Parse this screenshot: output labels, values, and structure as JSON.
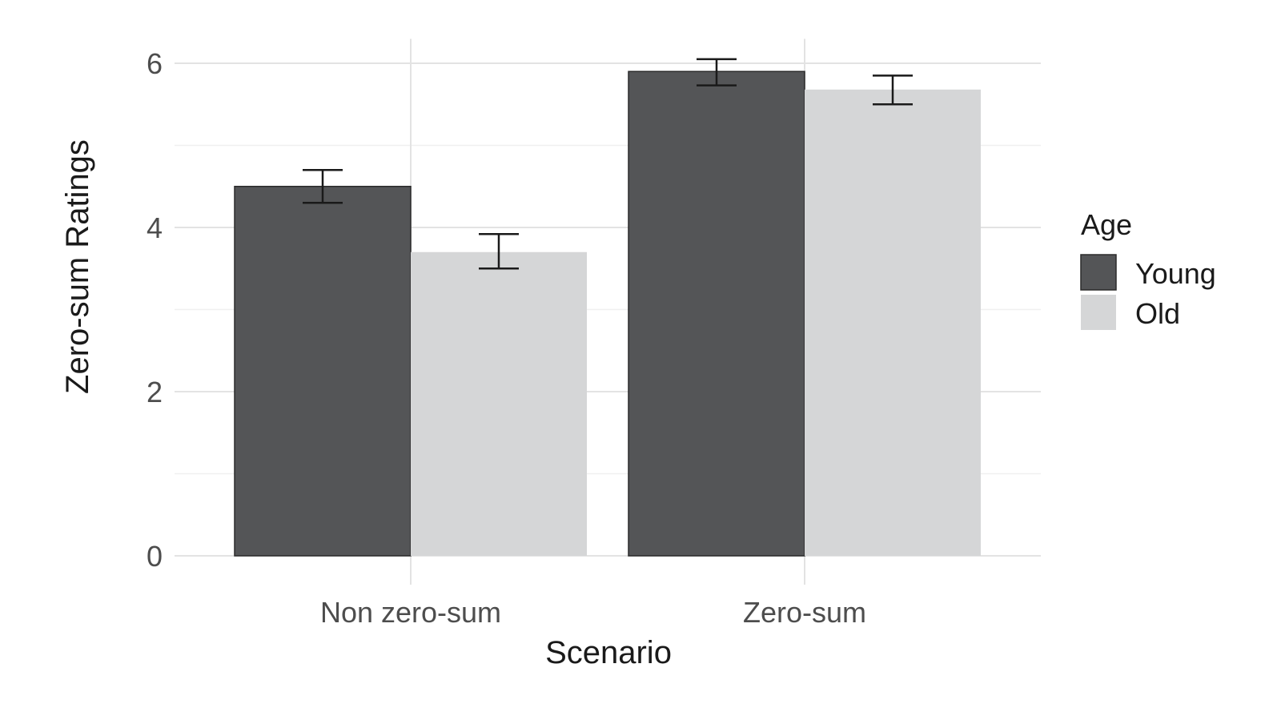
{
  "chart_data": {
    "type": "bar",
    "xlabel": "Scenario",
    "ylabel": "Zero-sum Ratings",
    "categories": [
      "Non zero-sum",
      "Zero-sum"
    ],
    "ylim": [
      0,
      6.2
    ],
    "yticks": [
      0,
      2,
      4,
      6
    ],
    "grid": true,
    "legend": {
      "title": "Age",
      "placement": "right"
    },
    "series": [
      {
        "name": "Young",
        "color": "#545557",
        "values": [
          4.5,
          5.9
        ],
        "error_low": [
          4.3,
          5.73
        ],
        "error_high": [
          4.7,
          6.05
        ]
      },
      {
        "name": "Old",
        "color": "#d5d6d7",
        "values": [
          3.7,
          5.68
        ],
        "error_low": [
          3.5,
          5.5
        ],
        "error_high": [
          3.92,
          5.85
        ]
      }
    ]
  }
}
